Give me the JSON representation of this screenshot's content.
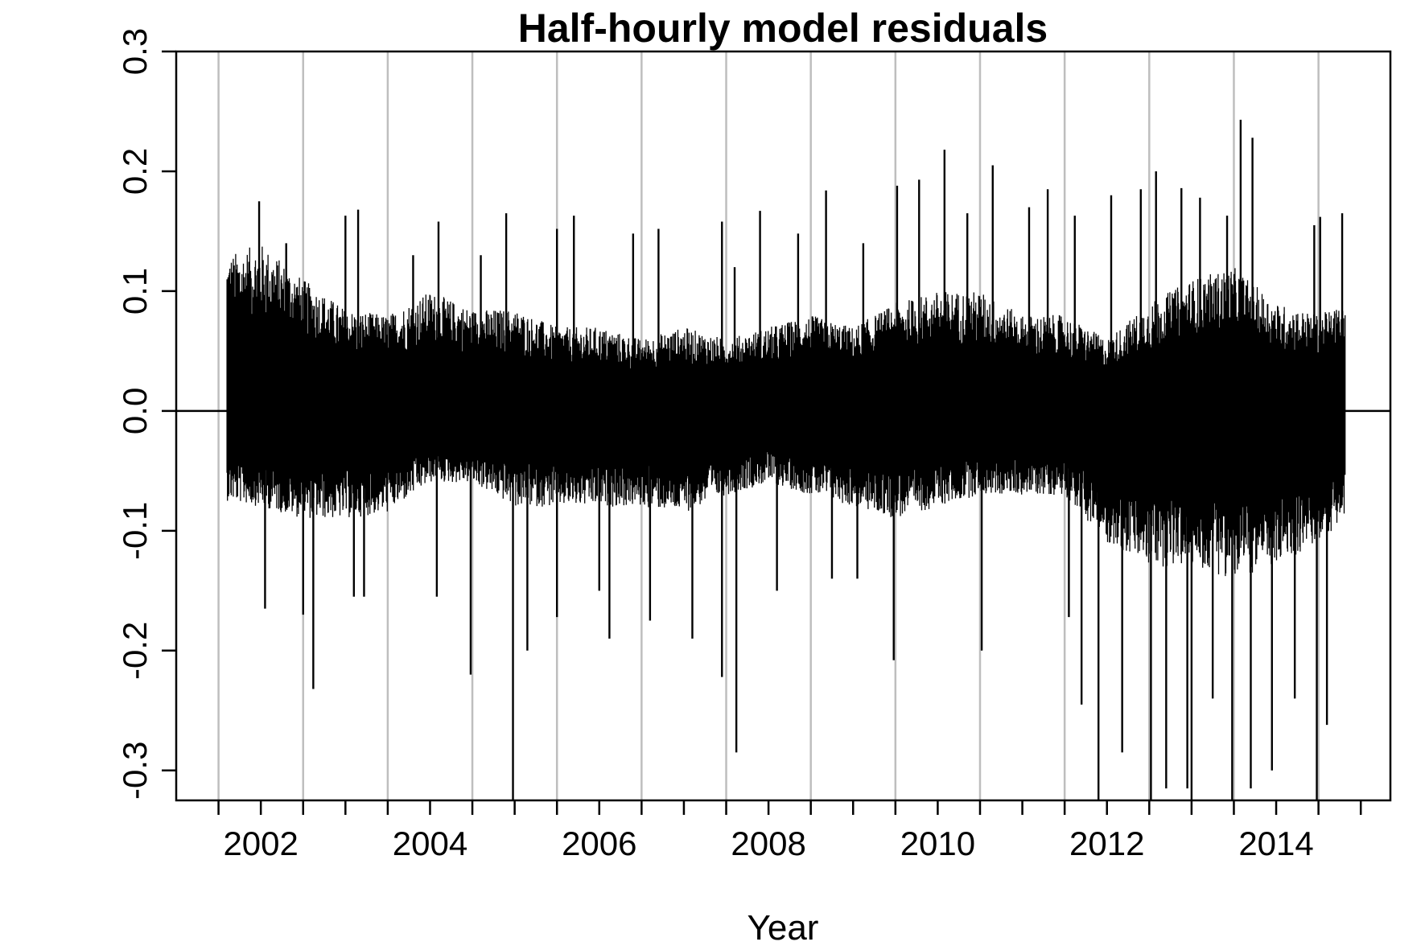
{
  "chart_data": {
    "type": "line",
    "title": "Half-hourly model residuals",
    "xlabel": "Year",
    "ylabel": "",
    "xlim": [
      2001.0,
      2015.35
    ],
    "ylim": [
      -0.325,
      0.3
    ],
    "x_ticks": [
      2001.5,
      2002,
      2002.5,
      2003,
      2003.5,
      2004,
      2004.5,
      2005,
      2005.5,
      2006,
      2006.5,
      2007,
      2007.5,
      2008,
      2008.5,
      2009,
      2009.5,
      2010,
      2010.5,
      2011,
      2011.5,
      2012,
      2012.5,
      2013,
      2013.5,
      2014,
      2014.5,
      2015
    ],
    "x_tick_labels": [
      "2002",
      "2004",
      "2006",
      "2008",
      "2010",
      "2012",
      "2014"
    ],
    "x_tick_label_values": [
      2002,
      2004,
      2006,
      2008,
      2010,
      2012,
      2014
    ],
    "y_ticks": [
      -0.3,
      -0.2,
      -0.1,
      0.0,
      0.1,
      0.2,
      0.3
    ],
    "y_tick_labels": [
      "-0.3",
      "-0.2",
      "-0.1",
      "0.0",
      "0.1",
      "0.2",
      "0.3"
    ],
    "grid": {
      "vertical_lines_at": [
        2001.5,
        2002.5,
        2003.5,
        2004.5,
        2005.5,
        2006.5,
        2007.5,
        2008.5,
        2009.5,
        2010.5,
        2011.5,
        2012.5,
        2013.5,
        2014.5
      ],
      "color": "#bebebe"
    },
    "reference_line": {
      "y": 0.0,
      "color": "#000000"
    },
    "series_color": "#000000",
    "series_range": [
      2001.6,
      2014.82
    ],
    "envelope": [
      {
        "x": 2001.6,
        "upper": 0.13,
        "lower": -0.075
      },
      {
        "x": 2002.0,
        "upper": 0.14,
        "lower": -0.08
      },
      {
        "x": 2002.5,
        "upper": 0.11,
        "lower": -0.09
      },
      {
        "x": 2003.0,
        "upper": 0.085,
        "lower": -0.09
      },
      {
        "x": 2003.5,
        "upper": 0.08,
        "lower": -0.085
      },
      {
        "x": 2004.0,
        "upper": 0.1,
        "lower": -0.06
      },
      {
        "x": 2004.5,
        "upper": 0.085,
        "lower": -0.06
      },
      {
        "x": 2005.0,
        "upper": 0.085,
        "lower": -0.08
      },
      {
        "x": 2005.5,
        "upper": 0.07,
        "lower": -0.08
      },
      {
        "x": 2006.0,
        "upper": 0.07,
        "lower": -0.08
      },
      {
        "x": 2006.5,
        "upper": 0.06,
        "lower": -0.08
      },
      {
        "x": 2007.0,
        "upper": 0.07,
        "lower": -0.085
      },
      {
        "x": 2007.5,
        "upper": 0.06,
        "lower": -0.07
      },
      {
        "x": 2008.0,
        "upper": 0.07,
        "lower": -0.06
      },
      {
        "x": 2008.5,
        "upper": 0.08,
        "lower": -0.07
      },
      {
        "x": 2009.0,
        "upper": 0.07,
        "lower": -0.08
      },
      {
        "x": 2009.5,
        "upper": 0.09,
        "lower": -0.09
      },
      {
        "x": 2010.0,
        "upper": 0.1,
        "lower": -0.08
      },
      {
        "x": 2010.5,
        "upper": 0.1,
        "lower": -0.07
      },
      {
        "x": 2011.0,
        "upper": 0.08,
        "lower": -0.07
      },
      {
        "x": 2011.5,
        "upper": 0.08,
        "lower": -0.07
      },
      {
        "x": 2012.0,
        "upper": 0.06,
        "lower": -0.11
      },
      {
        "x": 2012.5,
        "upper": 0.09,
        "lower": -0.13
      },
      {
        "x": 2013.0,
        "upper": 0.11,
        "lower": -0.13
      },
      {
        "x": 2013.5,
        "upper": 0.12,
        "lower": -0.14
      },
      {
        "x": 2014.0,
        "upper": 0.09,
        "lower": -0.13
      },
      {
        "x": 2014.5,
        "upper": 0.08,
        "lower": -0.11
      },
      {
        "x": 2014.82,
        "upper": 0.09,
        "lower": -0.09
      }
    ],
    "spikes": [
      {
        "x": 2001.98,
        "y": 0.175
      },
      {
        "x": 2002.05,
        "y": -0.165
      },
      {
        "x": 2002.3,
        "y": 0.14
      },
      {
        "x": 2002.5,
        "y": -0.17
      },
      {
        "x": 2002.62,
        "y": -0.232
      },
      {
        "x": 2003.0,
        "y": 0.163
      },
      {
        "x": 2003.1,
        "y": -0.155
      },
      {
        "x": 2003.15,
        "y": 0.168
      },
      {
        "x": 2003.22,
        "y": -0.155
      },
      {
        "x": 2003.8,
        "y": 0.13
      },
      {
        "x": 2004.1,
        "y": 0.158
      },
      {
        "x": 2004.08,
        "y": -0.155
      },
      {
        "x": 2004.48,
        "y": -0.22
      },
      {
        "x": 2004.6,
        "y": 0.13
      },
      {
        "x": 2004.9,
        "y": 0.165
      },
      {
        "x": 2004.98,
        "y": -0.33
      },
      {
        "x": 2005.15,
        "y": -0.2
      },
      {
        "x": 2005.5,
        "y": 0.152
      },
      {
        "x": 2005.5,
        "y": -0.172
      },
      {
        "x": 2005.7,
        "y": 0.163
      },
      {
        "x": 2006.0,
        "y": -0.15
      },
      {
        "x": 2006.12,
        "y": -0.19
      },
      {
        "x": 2006.4,
        "y": 0.148
      },
      {
        "x": 2006.6,
        "y": -0.175
      },
      {
        "x": 2006.7,
        "y": 0.152
      },
      {
        "x": 2007.1,
        "y": -0.19
      },
      {
        "x": 2007.45,
        "y": -0.222
      },
      {
        "x": 2007.45,
        "y": 0.158
      },
      {
        "x": 2007.6,
        "y": 0.12
      },
      {
        "x": 2007.62,
        "y": -0.285
      },
      {
        "x": 2007.9,
        "y": 0.167
      },
      {
        "x": 2008.1,
        "y": -0.15
      },
      {
        "x": 2008.35,
        "y": 0.148
      },
      {
        "x": 2008.68,
        "y": 0.184
      },
      {
        "x": 2008.75,
        "y": -0.14
      },
      {
        "x": 2009.05,
        "y": -0.14
      },
      {
        "x": 2009.12,
        "y": 0.14
      },
      {
        "x": 2009.48,
        "y": -0.208
      },
      {
        "x": 2009.52,
        "y": 0.188
      },
      {
        "x": 2009.78,
        "y": 0.193
      },
      {
        "x": 2010.08,
        "y": 0.218
      },
      {
        "x": 2010.35,
        "y": 0.165
      },
      {
        "x": 2010.52,
        "y": -0.2
      },
      {
        "x": 2010.65,
        "y": 0.205
      },
      {
        "x": 2011.08,
        "y": 0.17
      },
      {
        "x": 2011.3,
        "y": 0.185
      },
      {
        "x": 2011.55,
        "y": -0.172
      },
      {
        "x": 2011.62,
        "y": 0.163
      },
      {
        "x": 2011.7,
        "y": -0.245
      },
      {
        "x": 2011.9,
        "y": -0.33
      },
      {
        "x": 2012.05,
        "y": 0.18
      },
      {
        "x": 2012.18,
        "y": -0.285
      },
      {
        "x": 2012.4,
        "y": 0.185
      },
      {
        "x": 2012.52,
        "y": -0.33
      },
      {
        "x": 2012.58,
        "y": 0.2
      },
      {
        "x": 2012.7,
        "y": -0.315
      },
      {
        "x": 2012.88,
        "y": 0.186
      },
      {
        "x": 2012.95,
        "y": -0.315
      },
      {
        "x": 2013.0,
        "y": -0.33
      },
      {
        "x": 2013.1,
        "y": 0.178
      },
      {
        "x": 2013.25,
        "y": -0.24
      },
      {
        "x": 2013.42,
        "y": 0.163
      },
      {
        "x": 2013.48,
        "y": -0.33
      },
      {
        "x": 2013.58,
        "y": 0.243
      },
      {
        "x": 2013.7,
        "y": -0.315
      },
      {
        "x": 2013.72,
        "y": 0.228
      },
      {
        "x": 2013.95,
        "y": -0.3
      },
      {
        "x": 2014.22,
        "y": -0.24
      },
      {
        "x": 2014.45,
        "y": 0.155
      },
      {
        "x": 2014.48,
        "y": -0.33
      },
      {
        "x": 2014.52,
        "y": 0.162
      },
      {
        "x": 2014.6,
        "y": -0.262
      },
      {
        "x": 2014.78,
        "y": 0.165
      }
    ]
  }
}
